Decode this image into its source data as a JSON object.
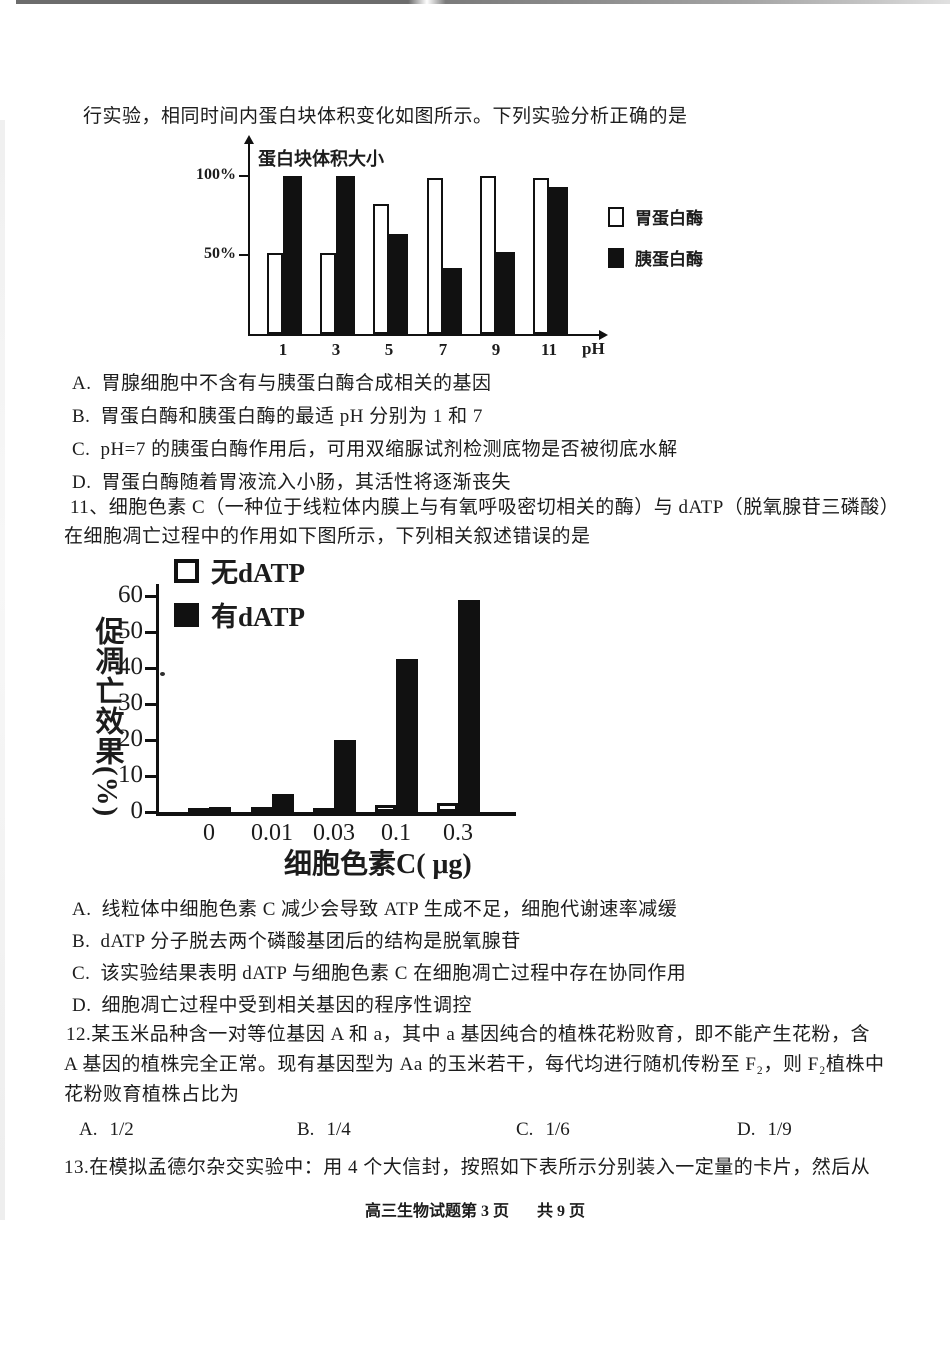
{
  "page": {
    "intro_line": "行实验，相同时间内蛋白块体积变化如图所示。下列实验分析正确的是",
    "footer_left": "高三生物试题第 3 页",
    "footer_right": "共 9 页"
  },
  "q10_options": [
    {
      "label": "A.",
      "text": "胃腺细胞中不含有与胰蛋白酶合成相关的基因"
    },
    {
      "label": "B.",
      "text": "胃蛋白酶和胰蛋白酶的最适 pH 分别为 1 和 7"
    },
    {
      "label": "C.",
      "text": "pH=7 的胰蛋白酶作用后，可用双缩脲试剂检测底物是否被彻底水解"
    },
    {
      "label": "D.",
      "text": "胃蛋白酶随着胃液流入小肠，其活性将逐渐丧失"
    }
  ],
  "q11": {
    "stem_line1": "11、细胞色素 C（一种位于线粒体内膜上与有氧呼吸密切相关的酶）与 dATP（脱氧腺苷三磷酸）",
    "stem_line2": "在细胞凋亡过程中的作用如下图所示，下列相关叙述错误的是",
    "options": [
      {
        "label": "A.",
        "text": "线粒体中细胞色素 C 减少会导致 ATP 生成不足，细胞代谢速率减缓"
      },
      {
        "label": "B.",
        "text": "dATP 分子脱去两个磷酸基团后的结构是脱氧腺苷"
      },
      {
        "label": "C.",
        "text": "该实验结果表明 dATP 与细胞色素 C 在细胞凋亡过程中存在协同作用"
      },
      {
        "label": "D.",
        "text": "细胞凋亡过程中受到相关基因的程序性调控"
      }
    ]
  },
  "q12": {
    "stem_line1": "12.某玉米品种含一对等位基因 A 和 a，其中 a 基因纯合的植株花粉败育，即不能产生花粉，含",
    "stem_line2": "A 基因的植株完全正常。现有基因型为 Aa 的玉米若干，每代均进行随机传粉至 F₂，则 F₂植株中",
    "stem_line3": "花粉败育植株占比为",
    "options": [
      {
        "label": "A.",
        "text": "1/2"
      },
      {
        "label": "B.",
        "text": "1/4"
      },
      {
        "label": "C.",
        "text": "1/6"
      },
      {
        "label": "D.",
        "text": "1/9"
      }
    ]
  },
  "q13": {
    "stem_line1": "13.在模拟孟德尔杂交实验中：用 4 个大信封，按照如下表所示分别装入一定量的卡片，然后从"
  },
  "chart_data": [
    {
      "type": "bar",
      "title": "",
      "ylabel": "蛋白块体积大小",
      "xlabel": "pH",
      "categories": [
        "1",
        "3",
        "5",
        "7",
        "9",
        "11"
      ],
      "series": [
        {
          "name": "胃蛋白酶",
          "fill": "white",
          "values": [
            51,
            51,
            82,
            99,
            100,
            99
          ]
        },
        {
          "name": "胰蛋白酶",
          "fill": "black",
          "values": [
            100,
            100,
            63,
            42,
            52,
            93
          ]
        }
      ],
      "ylim": [
        0,
        120
      ],
      "yticks": [
        100,
        50
      ],
      "ytick_labels": [
        "100%",
        "50%"
      ],
      "grid": false,
      "legend_position": "right"
    },
    {
      "type": "bar",
      "title": "",
      "ylabel": "促凋亡效果(%)",
      "xlabel": "细胞色素C( μg)",
      "categories": [
        "0",
        "0.01",
        "0.03",
        "0.1",
        "0.3"
      ],
      "series": [
        {
          "name": "无dATP",
          "fill": "white",
          "values": [
            1,
            1.5,
            1,
            2,
            2.5
          ]
        },
        {
          "name": "有dATP",
          "fill": "black",
          "values": [
            1.5,
            5,
            20,
            42.5,
            59
          ]
        }
      ],
      "ylim": [
        0,
        63
      ],
      "yticks": [
        0,
        10,
        20,
        30,
        40,
        50,
        60
      ],
      "grid": false,
      "legend_position": "top-left"
    }
  ]
}
